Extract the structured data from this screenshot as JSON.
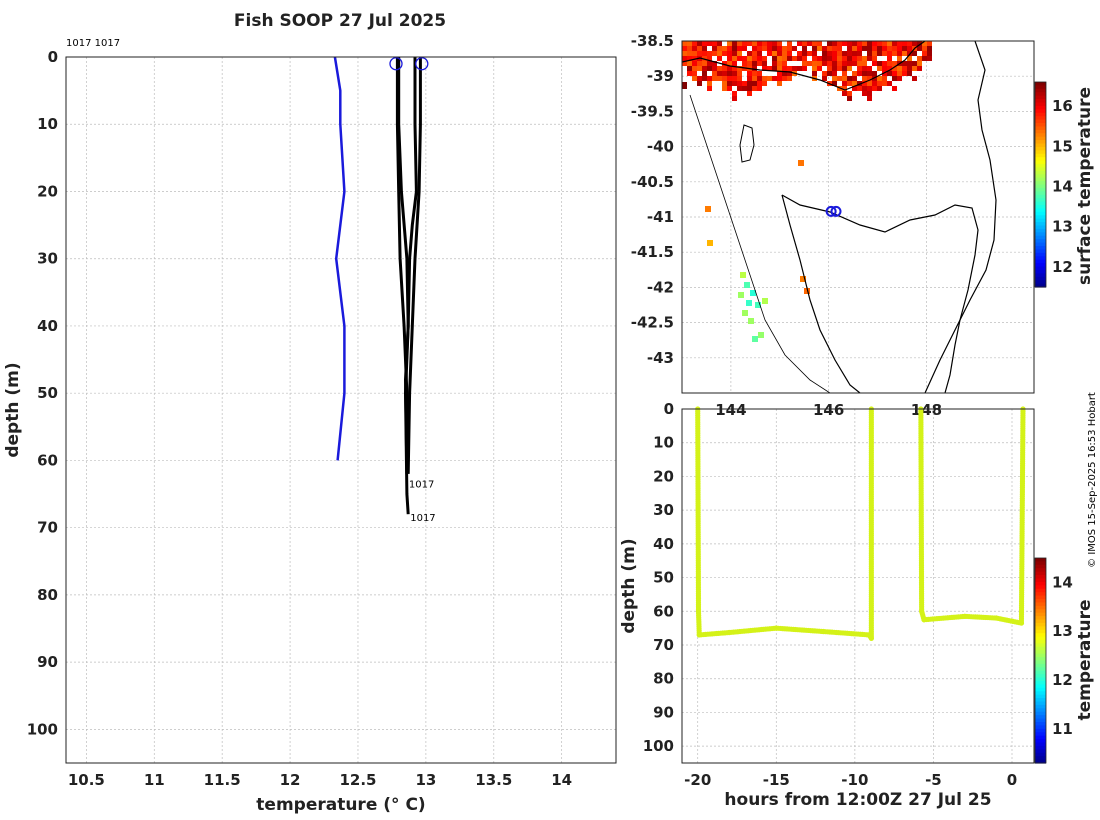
{
  "chart_data": [
    {
      "type": "line",
      "name": "profile",
      "title": "Fish SOOP 27 Jul 2025",
      "xlabel": "temperature (° C)",
      "ylabel": "depth (m)",
      "xlim": [
        10.35,
        14.4
      ],
      "ylim": [
        0,
        105
      ],
      "xticks": [
        10.5,
        11,
        11.5,
        12,
        12.5,
        13,
        13.5,
        14
      ],
      "yticks": [
        0,
        10,
        20,
        30,
        40,
        50,
        60,
        70,
        80,
        90,
        100
      ],
      "top_labels": "1017 1017",
      "series": [
        {
          "name": "climatology",
          "color": "#1a1adb",
          "points": [
            [
              12.33,
              0
            ],
            [
              12.37,
              5
            ],
            [
              12.37,
              10
            ],
            [
              12.4,
              20
            ],
            [
              12.34,
              30
            ],
            [
              12.4,
              40
            ],
            [
              12.4,
              50
            ],
            [
              12.35,
              60
            ]
          ]
        },
        {
          "name": "profile-1017-a",
          "color": "#000000",
          "points": [
            [
              12.79,
              0
            ],
            [
              12.79,
              10
            ],
            [
              12.8,
              20
            ],
            [
              12.81,
              30
            ],
            [
              12.84,
              40
            ],
            [
              12.86,
              50
            ],
            [
              12.86,
              62
            ]
          ]
        },
        {
          "name": "profile-1017-b",
          "color": "#000000",
          "points": [
            [
              12.8,
              0
            ],
            [
              12.8,
              10
            ],
            [
              12.82,
              20
            ],
            [
              12.86,
              30
            ],
            [
              12.87,
              40
            ],
            [
              12.85,
              50
            ],
            [
              12.86,
              65
            ],
            [
              12.87,
              68
            ]
          ]
        },
        {
          "name": "profile-1017-c",
          "color": "#000000",
          "points": [
            [
              12.92,
              0
            ],
            [
              12.92,
              10
            ],
            [
              12.93,
              20
            ],
            [
              12.9,
              25
            ],
            [
              12.88,
              30
            ],
            [
              12.87,
              40
            ],
            [
              12.85,
              48
            ],
            [
              12.86,
              62
            ]
          ]
        },
        {
          "name": "profile-1017-d",
          "color": "#000000",
          "points": [
            [
              12.96,
              0
            ],
            [
              12.96,
              10
            ],
            [
              12.95,
              20
            ],
            [
              12.92,
              30
            ],
            [
              12.9,
              40
            ],
            [
              12.88,
              50
            ],
            [
              12.87,
              62
            ]
          ]
        }
      ],
      "markers": [
        [
          12.78,
          1
        ],
        [
          12.97,
          1
        ]
      ],
      "end_labels": [
        {
          "text": "1017",
          "x": 12.86,
          "y": 64
        },
        {
          "text": "1017",
          "x": 12.87,
          "y": 69
        }
      ]
    },
    {
      "type": "heatmap",
      "name": "sst-map",
      "ylabel": "surface temperature",
      "xlim": [
        143.0,
        150.2
      ],
      "ylim": [
        -43.5,
        -38.5
      ],
      "yticks": [
        -38.5,
        -39,
        -39.5,
        -40,
        -40.5,
        -41,
        -41.5,
        -42,
        -42.5,
        -43
      ],
      "xticks": [
        144,
        146,
        148
      ],
      "colorbar_ticks": [
        12,
        13,
        14,
        15,
        16
      ],
      "colorbar_range": [
        11.5,
        16.6
      ],
      "track_markers": [
        [
          146.05,
          -40.92
        ],
        [
          146.15,
          -40.92
        ]
      ]
    },
    {
      "type": "scatter",
      "name": "section",
      "xlabel": "hours from 12:00Z 27 Jul 25",
      "ylabel": "depth (m)",
      "xlim": [
        -21,
        1.4
      ],
      "ylim": [
        0,
        105
      ],
      "xticks": [
        -20,
        -15,
        -10,
        -5,
        0
      ],
      "yticks": [
        0,
        10,
        20,
        30,
        40,
        50,
        60,
        70,
        80,
        90,
        100
      ],
      "colorbar_label": "temperature",
      "colorbar_ticks": [
        11,
        12,
        13,
        14
      ],
      "colorbar_range": [
        10.3,
        14.5
      ],
      "point_color": "#d4f218",
      "casts": [
        {
          "points": [
            [
              -20,
              0
            ],
            [
              -19.95,
              60
            ],
            [
              -19.9,
              67
            ],
            [
              -18,
              66.3
            ],
            [
              -15,
              65
            ],
            [
              -12,
              66
            ],
            [
              -9.1,
              67
            ],
            [
              -8.95,
              68
            ],
            [
              -8.95,
              0
            ]
          ]
        },
        {
          "points": [
            [
              -5.8,
              0
            ],
            [
              -5.75,
              60
            ],
            [
              -5.6,
              62.5
            ],
            [
              -3,
              61.5
            ],
            [
              -1,
              62
            ],
            [
              0.6,
              63.5
            ],
            [
              0.7,
              0
            ]
          ]
        }
      ]
    }
  ],
  "credit": "© IMOS 15-Sep-2025 16:53 Hobart"
}
